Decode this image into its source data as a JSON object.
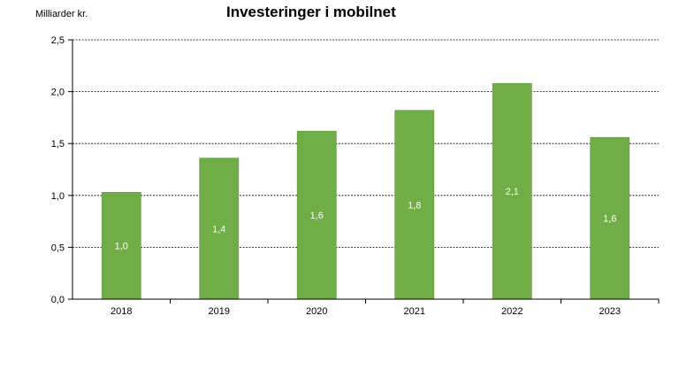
{
  "chart_data": {
    "type": "bar",
    "title": "Investeringer i mobilnet",
    "ylabel": "Milliarder kr.",
    "xlabel": "",
    "categories": [
      "2018",
      "2019",
      "2020",
      "2021",
      "2022",
      "2023"
    ],
    "values": [
      1.03,
      1.36,
      1.62,
      1.82,
      2.08,
      1.56
    ],
    "data_labels": [
      "1,0",
      "1,4",
      "1,6",
      "1,8",
      "2,1",
      "1,6"
    ],
    "ylim": [
      0,
      2.5
    ],
    "yticks": [
      0,
      0.5,
      1.0,
      1.5,
      2.0,
      2.5
    ],
    "ytick_labels": [
      "0,0",
      "0,5",
      "1,0",
      "1,5",
      "2,0",
      "2,5"
    ],
    "grid": true,
    "colors": {
      "bar": "#70ad47",
      "bar_edge": "#5e9a3a",
      "label": "#ffffff",
      "grid": "#000000"
    }
  }
}
